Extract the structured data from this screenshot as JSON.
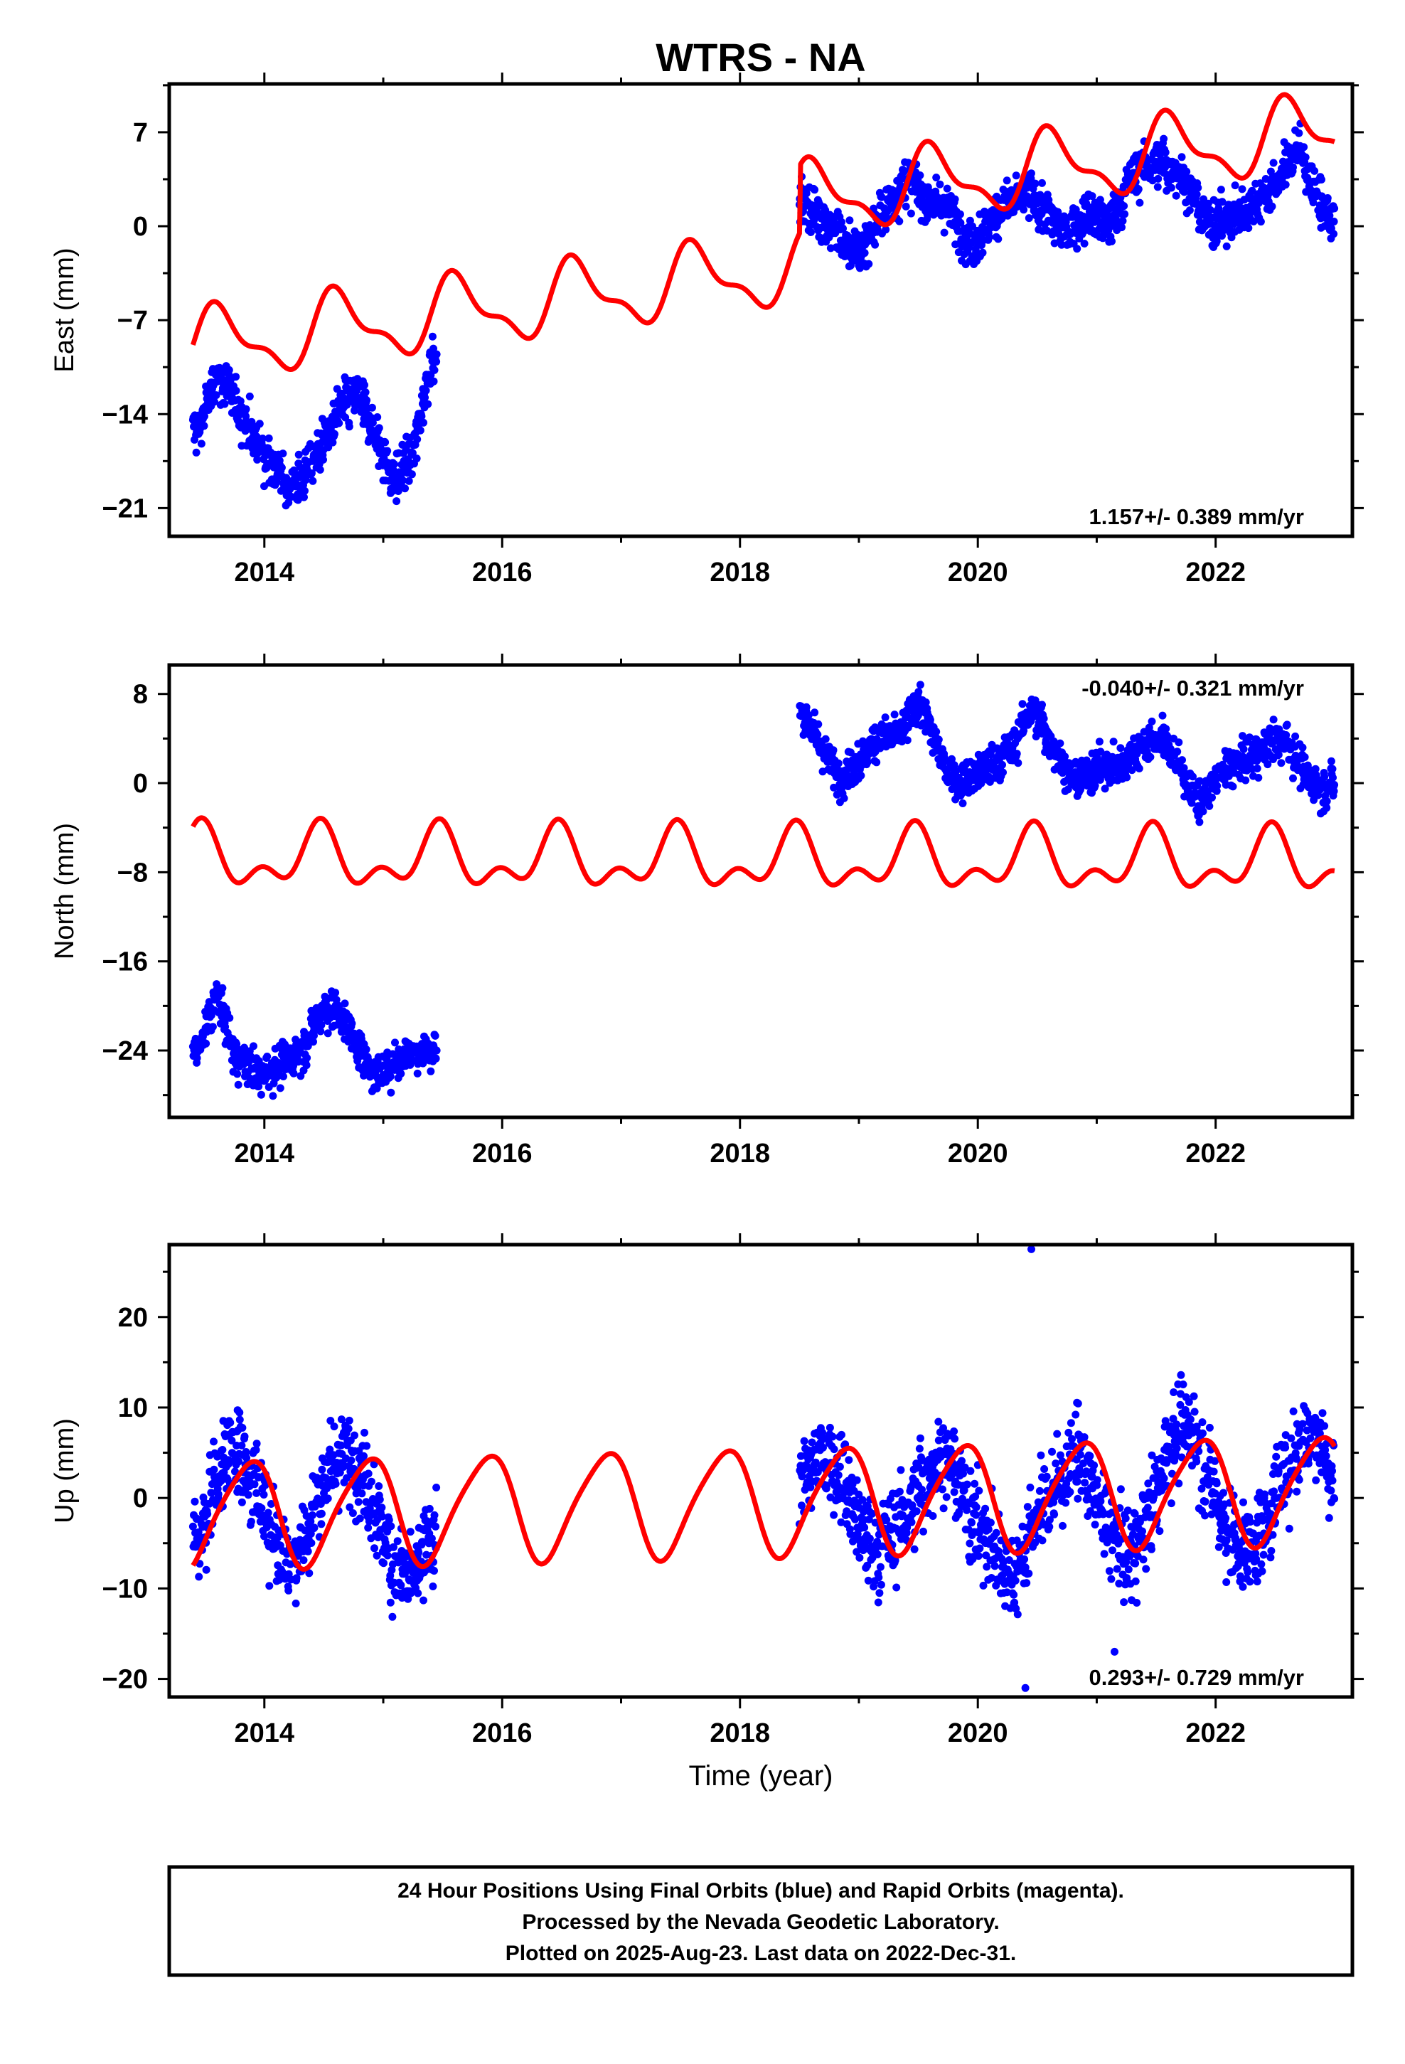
{
  "chart_data": {
    "title": "WTRS - NA",
    "type": "scatter",
    "x_axis": {
      "label": "Time (year)",
      "range": [
        2013.2,
        2023.15
      ],
      "ticks": [
        2014,
        2016,
        2018,
        2020,
        2022
      ]
    },
    "colors": {
      "data": "#0000ff",
      "model": "#ff0000",
      "frame": "#000000"
    },
    "panels": [
      {
        "name": "east",
        "ylabel": "East (mm)",
        "ylim": [
          -23.1,
          10.6
        ],
        "yticks": [
          7,
          0,
          -7,
          -14,
          -21
        ],
        "ytick_labels": [
          "7",
          "0",
          "−7",
          "−14",
          "−21"
        ],
        "rate_text": "1.157+/- 0.389 mm/yr",
        "rate_position": "bottom-right",
        "model": {
          "offsets": [
            [
              2013.4,
              -9.0
            ],
            [
              2018.5,
              -4.0
            ]
          ],
          "trend": 1.157,
          "annual_amp": 2.4,
          "annual_phase": 0.15,
          "semiannual_amp": 1.0,
          "semiannual_phase": -0.2,
          "t0": 2013.4
        },
        "segments": [
          {
            "start": 2013.4,
            "end": 2015.45,
            "points": [
              [
                2013.45,
                -15.0
              ],
              [
                2013.6,
                -11.0
              ],
              [
                2013.75,
                -13.0
              ],
              [
                2013.9,
                -15.5
              ],
              [
                2014.05,
                -17.5
              ],
              [
                2014.2,
                -19.5
              ],
              [
                2014.35,
                -18.5
              ],
              [
                2014.5,
                -16.0
              ],
              [
                2014.65,
                -13.5
              ],
              [
                2014.8,
                -12.5
              ],
              [
                2014.95,
                -16.0
              ],
              [
                2015.1,
                -19.0
              ],
              [
                2015.25,
                -17.0
              ],
              [
                2015.4,
                -10.0
              ]
            ]
          },
          {
            "start": 2018.5,
            "end": 2023.0,
            "points": [
              [
                2018.55,
                1.5
              ],
              [
                2018.7,
                0.5
              ],
              [
                2018.85,
                -1.0
              ],
              [
                2019.0,
                -2.0
              ],
              [
                2019.2,
                1.0
              ],
              [
                2019.4,
                3.5
              ],
              [
                2019.55,
                2.0
              ],
              [
                2019.75,
                1.5
              ],
              [
                2019.95,
                -1.5
              ],
              [
                2020.2,
                1.5
              ],
              [
                2020.45,
                2.5
              ],
              [
                2020.7,
                -0.5
              ],
              [
                2020.95,
                1.0
              ],
              [
                2021.1,
                0.0
              ],
              [
                2021.3,
                3.5
              ],
              [
                2021.5,
                5.0
              ],
              [
                2021.7,
                4.0
              ],
              [
                2021.9,
                0.5
              ],
              [
                2022.1,
                0.5
              ],
              [
                2022.3,
                1.5
              ],
              [
                2022.5,
                3.0
              ],
              [
                2022.7,
                6.0
              ],
              [
                2022.85,
                2.0
              ],
              [
                2022.98,
                0.5
              ]
            ]
          }
        ]
      },
      {
        "name": "north",
        "ylabel": "North (mm)",
        "ylim": [
          -30.0,
          10.6
        ],
        "yticks": [
          8,
          0,
          -8,
          -16,
          -24
        ],
        "ytick_labels": [
          "8",
          "0",
          "−8",
          "−16",
          "−24"
        ],
        "rate_text": "-0.040+/- 0.321 mm/yr",
        "rate_position": "top-right",
        "model": {
          "offsets": [
            [
              2013.4,
              -6.8
            ]
          ],
          "trend": -0.04,
          "annual_amp": 2.2,
          "annual_phase": 1.2,
          "semiannual_amp": 1.5,
          "semiannual_phase": 0.6,
          "t0": 2013.4
        },
        "segments": [
          {
            "start": 2013.4,
            "end": 2015.45,
            "points": [
              [
                2013.45,
                -24.0
              ],
              [
                2013.6,
                -19.0
              ],
              [
                2013.75,
                -24.5
              ],
              [
                2013.95,
                -26.0
              ],
              [
                2014.15,
                -25.5
              ],
              [
                2014.35,
                -23.5
              ],
              [
                2014.5,
                -20.0
              ],
              [
                2014.65,
                -21.0
              ],
              [
                2014.8,
                -24.0
              ],
              [
                2014.95,
                -26.5
              ],
              [
                2015.1,
                -25.0
              ],
              [
                2015.25,
                -24.0
              ],
              [
                2015.4,
                -24.0
              ]
            ]
          },
          {
            "start": 2018.5,
            "end": 2023.0,
            "points": [
              [
                2018.55,
                6.0
              ],
              [
                2018.7,
                3.0
              ],
              [
                2018.85,
                0.5
              ],
              [
                2019.0,
                2.0
              ],
              [
                2019.15,
                4.0
              ],
              [
                2019.35,
                4.5
              ],
              [
                2019.5,
                7.5
              ],
              [
                2019.7,
                2.0
              ],
              [
                2019.85,
                0.0
              ],
              [
                2020.3,
                3.0
              ],
              [
                2020.45,
                7.0
              ],
              [
                2020.8,
                0.0
              ],
              [
                2021.0,
                1.5
              ],
              [
                2021.2,
                1.5
              ],
              [
                2021.4,
                3.5
              ],
              [
                2021.55,
                4.0
              ],
              [
                2021.7,
                1.5
              ],
              [
                2021.85,
                -2.0
              ],
              [
                2022.05,
                1.0
              ],
              [
                2022.25,
                2.0
              ],
              [
                2022.45,
                3.5
              ],
              [
                2022.6,
                4.0
              ],
              [
                2022.75,
                0.5
              ],
              [
                2022.9,
                -0.5
              ],
              [
                2022.98,
                0.0
              ]
            ]
          }
        ]
      },
      {
        "name": "up",
        "ylabel": "Up (mm)",
        "ylim": [
          -22.0,
          28.0
        ],
        "yticks": [
          20,
          10,
          0,
          -10,
          -20
        ],
        "ytick_labels": [
          "20",
          "10",
          "0",
          "−10",
          "−20"
        ],
        "rate_text": "0.293+/- 0.729 mm/yr",
        "rate_position": "bottom-right",
        "model": {
          "offsets": [
            [
              2013.4,
              -1.8
            ]
          ],
          "trend": 0.293,
          "annual_amp": 5.8,
          "annual_phase": -1.35,
          "semiannual_amp": 0.9,
          "semiannual_phase": 0.0,
          "t0": 2013.4
        },
        "segments": [
          {
            "start": 2013.4,
            "end": 2015.45,
            "points": [
              [
                2013.45,
                -4.0
              ],
              [
                2013.6,
                2.0
              ],
              [
                2013.75,
                6.0
              ],
              [
                2013.9,
                2.0
              ],
              [
                2014.05,
                -3.0
              ],
              [
                2014.2,
                -7.0
              ],
              [
                2014.35,
                -4.0
              ],
              [
                2014.5,
                2.0
              ],
              [
                2014.65,
                5.0
              ],
              [
                2014.8,
                4.0
              ],
              [
                2014.95,
                -2.0
              ],
              [
                2015.1,
                -8.0
              ],
              [
                2015.25,
                -9.0
              ],
              [
                2015.4,
                -4.0
              ]
            ]
          },
          {
            "start": 2018.5,
            "end": 2023.0,
            "points": [
              [
                2018.55,
                2.0
              ],
              [
                2018.7,
                5.0
              ],
              [
                2018.85,
                3.0
              ],
              [
                2019.0,
                -3.0
              ],
              [
                2019.15,
                -6.0
              ],
              [
                2019.35,
                -3.0
              ],
              [
                2019.5,
                1.0
              ],
              [
                2019.7,
                5.0
              ],
              [
                2019.85,
                1.0
              ],
              [
                2020.05,
                -4.0
              ],
              [
                2020.3,
                -9.0
              ],
              [
                2020.5,
                -2.0
              ],
              [
                2020.85,
                5.0
              ],
              [
                2021.05,
                -2.0
              ],
              [
                2021.25,
                -7.0
              ],
              [
                2021.45,
                -2.0
              ],
              [
                2021.6,
                6.0
              ],
              [
                2021.8,
                8.0
              ],
              [
                2021.95,
                2.0
              ],
              [
                2022.15,
                -5.0
              ],
              [
                2022.3,
                -6.0
              ],
              [
                2022.5,
                0.0
              ],
              [
                2022.7,
                6.0
              ],
              [
                2022.85,
                8.0
              ],
              [
                2022.98,
                2.0
              ]
            ]
          }
        ],
        "outliers": [
          [
            2020.45,
            27.5
          ],
          [
            2020.4,
            -21.0
          ],
          [
            2021.15,
            -17.0
          ]
        ]
      }
    ]
  },
  "caption": {
    "line1": "24 Hour Positions Using Final Orbits (blue) and Rapid Orbits (magenta).",
    "line2": "Processed by the Nevada Geodetic Laboratory.",
    "line3": "Plotted on 2025-Aug-23. Last data on 2022-Dec-31."
  }
}
